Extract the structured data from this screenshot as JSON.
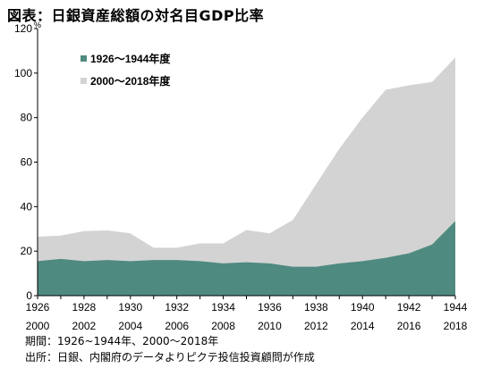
{
  "title": "図表：日銀資産総額の対名目GDP比率",
  "notes": {
    "period": "期間：1926~1944年、2000～2018年",
    "source": "出所：日銀、内閣府のデータよりピクテ投信投資顧問が作成"
  },
  "colors": {
    "series_1926_1944": "#4f8a80",
    "series_2000_2018": "#d3d3d3"
  },
  "chart_data": {
    "type": "area",
    "unit_label": "%",
    "ylim": [
      0,
      120
    ],
    "yticks": [
      "0",
      "20",
      "40",
      "60",
      "80",
      "100",
      "120"
    ],
    "x_top_labels": [
      "1926",
      "1928",
      "1930",
      "1932",
      "1934",
      "1936",
      "1938",
      "1940",
      "1942",
      "1944"
    ],
    "x_bottom_labels": [
      "2000",
      "2002",
      "2004",
      "2006",
      "2008",
      "2010",
      "2012",
      "2014",
      "2016",
      "2018"
    ],
    "legend_position": "top-left",
    "grid": false,
    "series": [
      {
        "name": "2000～2018年度",
        "x": [
          2000,
          2001,
          2002,
          2003,
          2004,
          2005,
          2006,
          2007,
          2008,
          2009,
          2010,
          2011,
          2012,
          2013,
          2014,
          2015,
          2016,
          2017,
          2018
        ],
        "values": [
          26.5,
          27,
          29,
          29.3,
          28,
          21.5,
          21.5,
          23.5,
          23.5,
          29.5,
          28,
          34,
          50,
          66,
          80,
          92.5,
          94.5,
          96,
          107
        ]
      },
      {
        "name": "1926～1944年度",
        "x": [
          1926,
          1927,
          1928,
          1929,
          1930,
          1931,
          1932,
          1933,
          1934,
          1935,
          1936,
          1937,
          1938,
          1939,
          1940,
          1941,
          1942,
          1943,
          1944
        ],
        "values": [
          15.5,
          16.5,
          15.5,
          16,
          15.5,
          16,
          16,
          15.5,
          14.5,
          15,
          14.5,
          13,
          13,
          14.5,
          15.5,
          17,
          19,
          23,
          33.5
        ]
      }
    ]
  }
}
